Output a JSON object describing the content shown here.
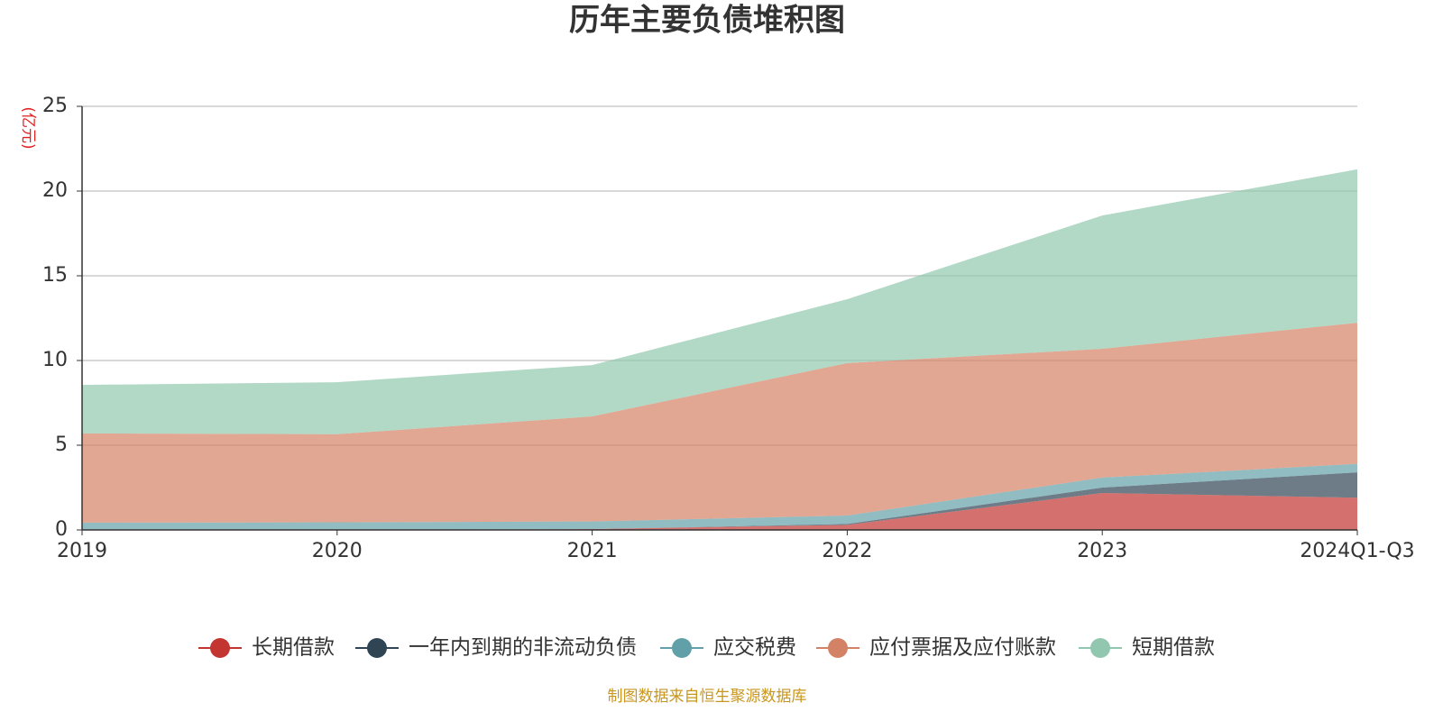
{
  "chart_data": {
    "type": "stacked_area",
    "title": "历年主要负债堆积图",
    "unit": "(亿元)",
    "source": "制图数据来自恒生聚源数据库",
    "categories": [
      "2019",
      "2020",
      "2021",
      "2022",
      "2023",
      "2024Q1-Q3"
    ],
    "series": [
      {
        "name": "长期借款",
        "color": "#c23531",
        "values": [
          0,
          0,
          0.05,
          0.3,
          2.18,
          1.9
        ]
      },
      {
        "name": "一年内到期的非流动负债",
        "color": "#2f4554",
        "values": [
          0,
          0,
          0,
          0.05,
          0.32,
          1.5
        ]
      },
      {
        "name": "应交税费",
        "color": "#61a0a8",
        "values": [
          0.43,
          0.45,
          0.45,
          0.5,
          0.59,
          0.5
        ]
      },
      {
        "name": "应付票据及应付账款",
        "color": "#d48265",
        "values": [
          5.27,
          5.2,
          6.2,
          9.0,
          7.6,
          8.33
        ]
      },
      {
        "name": "短期借款",
        "color": "#91c7ae",
        "values": [
          2.86,
          3.07,
          3.03,
          3.77,
          7.87,
          9.05
        ]
      }
    ],
    "ylim": [
      0,
      25
    ],
    "yticks": [
      0,
      5,
      10,
      15,
      20,
      25
    ],
    "grid": true
  }
}
